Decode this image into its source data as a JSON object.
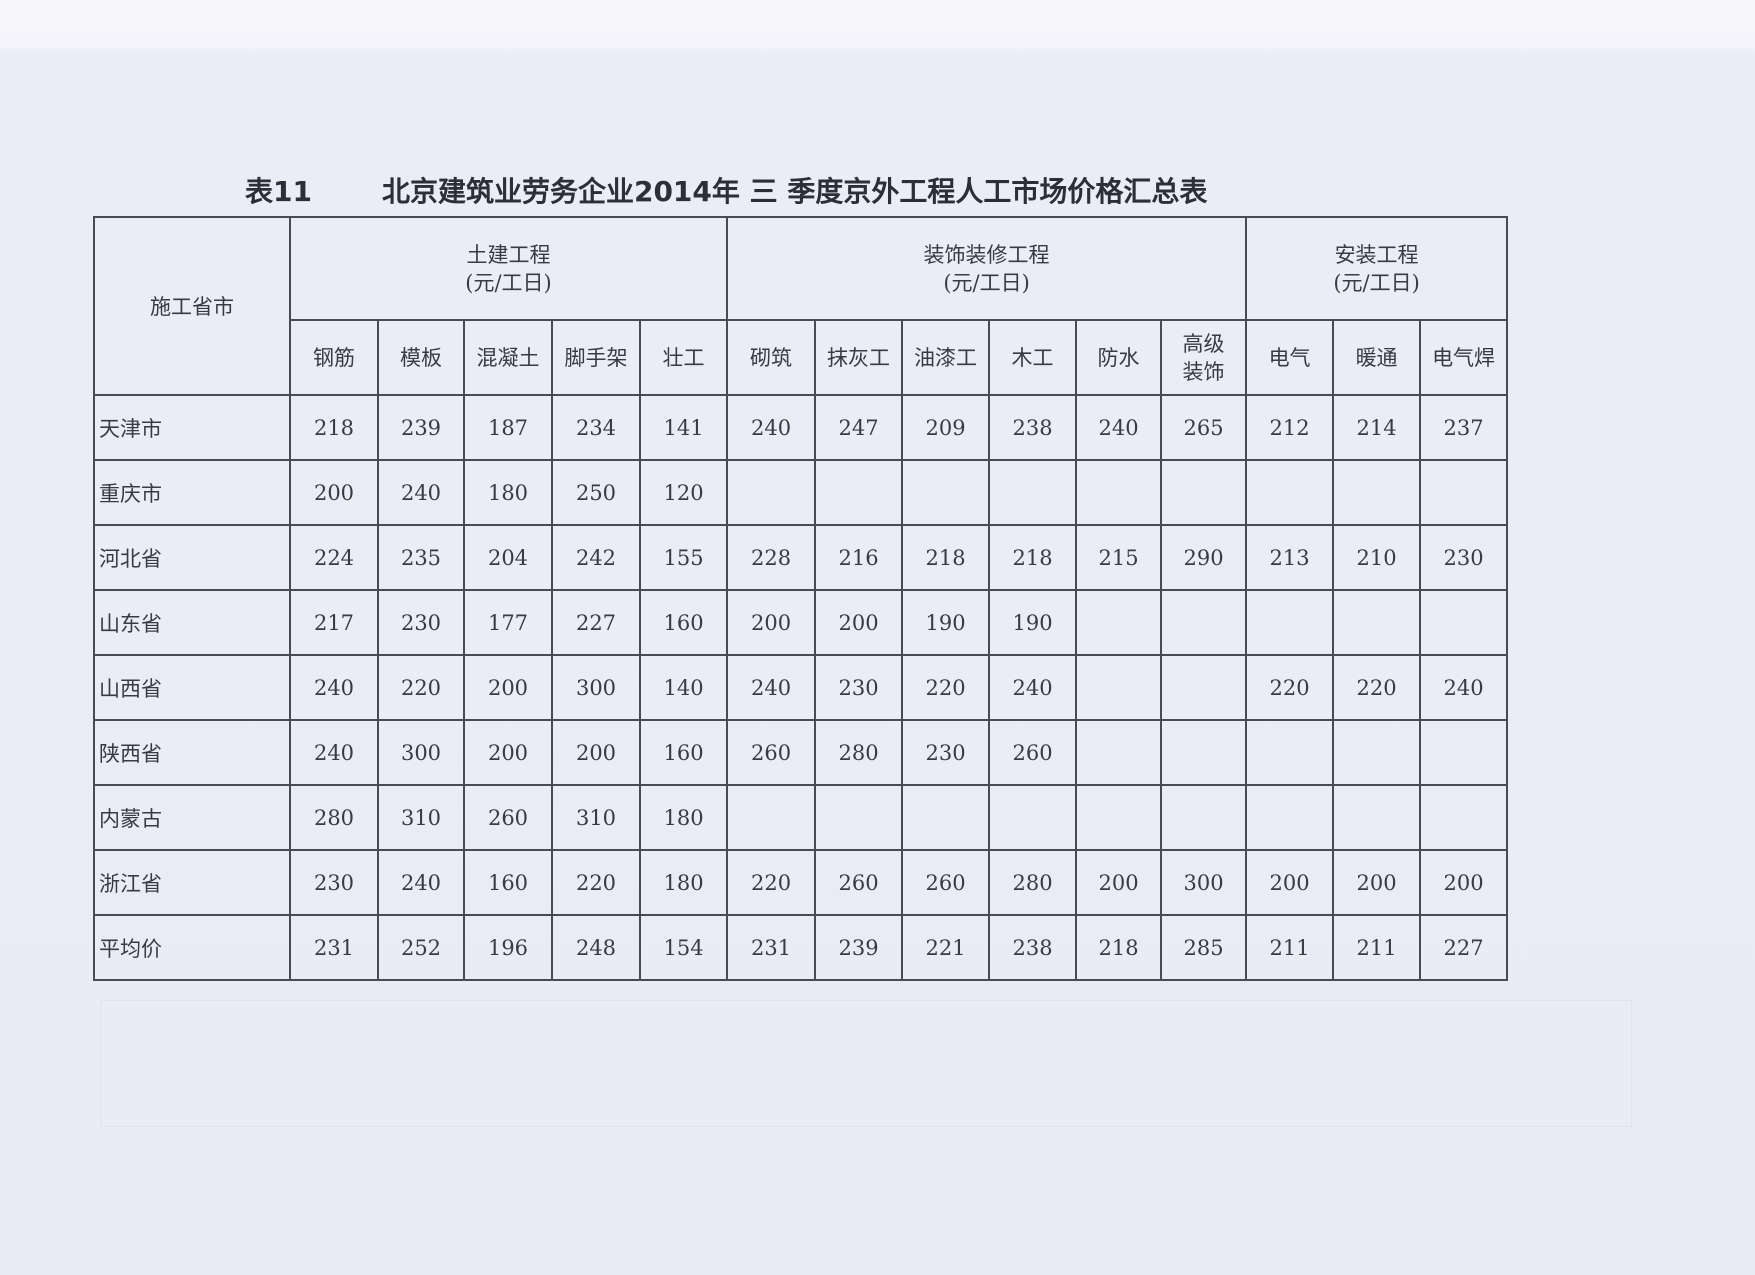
{
  "title": {
    "table_no": "表11",
    "text": "北京建筑业劳务企业2014年 三 季度京外工程人工市场价格汇总表"
  },
  "table": {
    "corner_header": "施工省市",
    "groups": [
      {
        "name": "土建工程",
        "unit": "(元/工日)",
        "span": 5
      },
      {
        "name": "装饰装修工程",
        "unit": "(元/工日)",
        "span": 6
      },
      {
        "name": "安装工程",
        "unit": "(元/工日)",
        "span": 3
      }
    ],
    "columns": [
      "钢筋",
      "模板",
      "混凝土",
      "脚手架",
      "壮工",
      "砌筑",
      "抹灰工",
      "油漆工",
      "木工",
      "防水",
      "高级装饰",
      "电气",
      "暖通",
      "电气焊"
    ],
    "rows": [
      {
        "province": "天津市",
        "values": [
          218,
          239,
          187,
          234,
          141,
          240,
          247,
          209,
          238,
          240,
          265,
          212,
          214,
          237
        ]
      },
      {
        "province": "重庆市",
        "values": [
          200,
          240,
          180,
          250,
          120,
          null,
          null,
          null,
          null,
          null,
          null,
          null,
          null,
          null
        ]
      },
      {
        "province": "河北省",
        "values": [
          224,
          235,
          204,
          242,
          155,
          228,
          216,
          218,
          218,
          215,
          290,
          213,
          210,
          230
        ]
      },
      {
        "province": "山东省",
        "values": [
          217,
          230,
          177,
          227,
          160,
          200,
          200,
          190,
          190,
          null,
          null,
          null,
          null,
          null
        ]
      },
      {
        "province": "山西省",
        "values": [
          240,
          220,
          200,
          300,
          140,
          240,
          230,
          220,
          240,
          null,
          null,
          220,
          220,
          240
        ]
      },
      {
        "province": "陕西省",
        "values": [
          240,
          300,
          200,
          200,
          160,
          260,
          280,
          230,
          260,
          null,
          null,
          null,
          null,
          null
        ]
      },
      {
        "province": "内蒙古",
        "values": [
          280,
          310,
          260,
          310,
          180,
          null,
          null,
          null,
          null,
          null,
          null,
          null,
          null,
          null
        ]
      },
      {
        "province": "浙江省",
        "values": [
          230,
          240,
          160,
          220,
          180,
          220,
          260,
          260,
          280,
          200,
          300,
          200,
          200,
          200
        ]
      },
      {
        "province": "平均价",
        "values": [
          231,
          252,
          196,
          248,
          154,
          231,
          239,
          221,
          238,
          218,
          285,
          211,
          211,
          227
        ]
      }
    ]
  }
}
